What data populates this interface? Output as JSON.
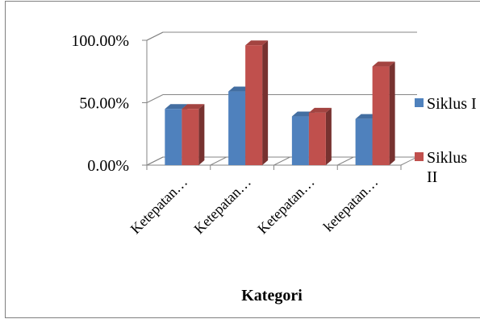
{
  "chart_data": {
    "type": "bar",
    "categories": [
      "Ketepatan…",
      "Ketepatan…",
      "Ketepatan…",
      "ketepatan…"
    ],
    "series": [
      {
        "name": "Siklus I",
        "values": [
          0.45,
          0.59,
          0.39,
          0.37
        ],
        "color": "#4f81bd"
      },
      {
        "name": "Siklus II",
        "values": [
          0.45,
          0.96,
          0.42,
          0.79
        ],
        "color": "#c0504d"
      }
    ],
    "xlabel": "Kategori",
    "ylabel": "",
    "ylim": [
      0,
      1
    ],
    "yticks": [
      "0.00%",
      "50.00%",
      "100.00%"
    ],
    "grid": true,
    "legend_position": "right",
    "style": "3d-clustered-column"
  }
}
